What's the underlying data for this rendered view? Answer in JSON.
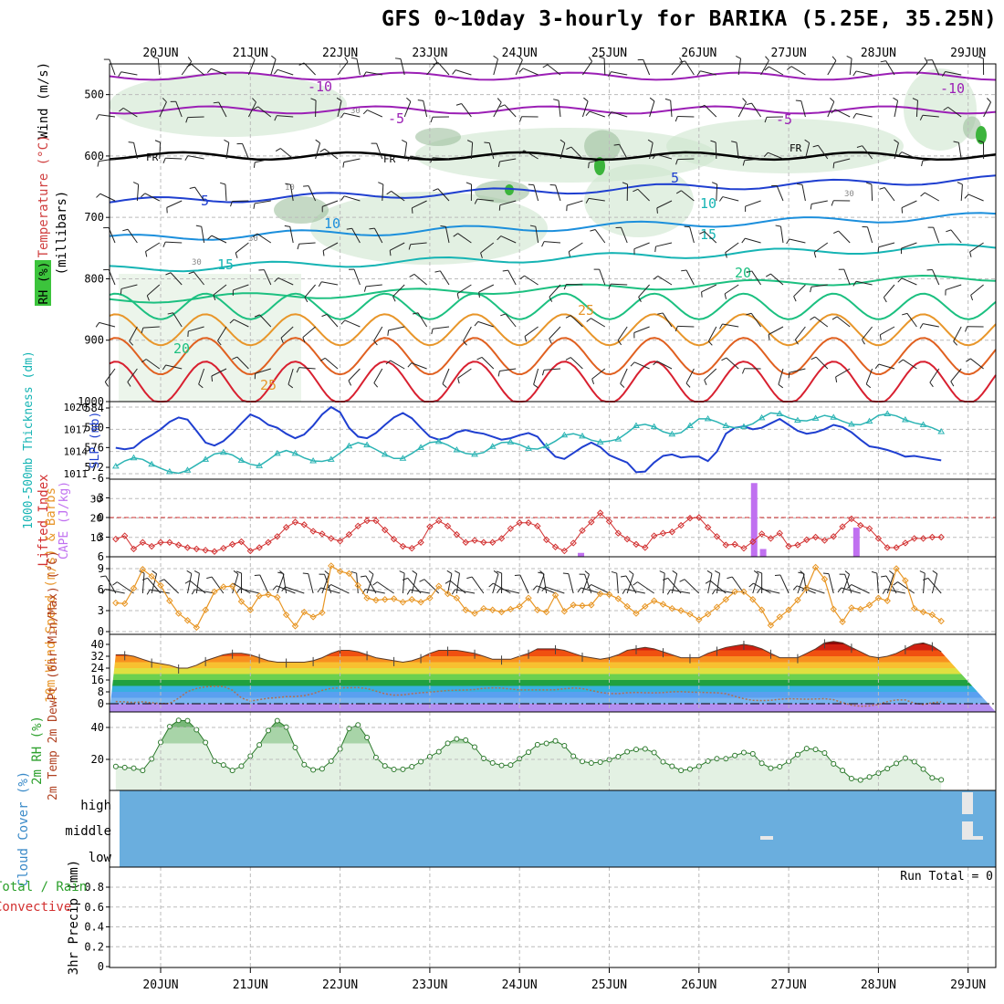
{
  "title": "GFS 0~10day 3-hourly for BARIKA (5.25E, 35.25N)",
  "dates": [
    "20JUN",
    "21JUN",
    "22JUN",
    "23JUN",
    "24JUN",
    "25JUN",
    "26JUN",
    "27JUN",
    "28JUN",
    "29JUN"
  ],
  "chart_data": [
    {
      "type": "area",
      "panel": "upper-air",
      "labels": {
        "wind": "Wind (m/s)",
        "temp": "Temperature (°C)",
        "rh": "RH (%)",
        "pressure": "(millibars)"
      },
      "y_ticks": [
        500,
        600,
        700,
        800,
        900,
        1000
      ],
      "ylim": [
        1000,
        450
      ],
      "isotherm_labels": [
        "-10",
        "-5",
        "FR",
        "5",
        "10",
        "15",
        "20",
        "25"
      ],
      "rh_labels": [
        "10",
        "30",
        "30",
        "30",
        "30"
      ],
      "isotherms": [
        {
          "name": "-10",
          "color": "#9b1fb5",
          "p": 470
        },
        {
          "name": "-5",
          "color": "#9b1fb5",
          "p": 525
        },
        {
          "name": "FR",
          "color": "#000000",
          "p": 600
        },
        {
          "name": "5",
          "color": "#1f3fd0",
          "p": 660
        },
        {
          "name": "10",
          "color": "#1c8fdc",
          "p": 720
        },
        {
          "name": "15",
          "color": "#16b4b4",
          "p": 770
        },
        {
          "name": "20",
          "color": "#1cc080",
          "p": 820
        }
      ]
    },
    {
      "type": "line",
      "panel": "thickness-slp",
      "ylabel_left": "1000-500mb Thickness (dm)",
      "ylabel_right": "SLP (mb)",
      "thickness_ticks": [
        572,
        576,
        580,
        584
      ],
      "slp_ticks": [
        1011,
        1014,
        1017,
        1020
      ],
      "series": [
        {
          "name": "SLP (mb)",
          "color": "#1f3fd0",
          "values": [
            1014.5,
            1014.3,
            1014.5,
            1015.5,
            1016.2,
            1017.0,
            1018.0,
            1018.6,
            1018.3,
            1016.8,
            1015.2,
            1014.8,
            1015.4,
            1016.5,
            1017.8,
            1019.0,
            1018.5,
            1017.6,
            1017.2,
            1016.4,
            1015.8,
            1016.3,
            1017.5,
            1019.0,
            1020.0,
            1019.3,
            1017.2,
            1016.0,
            1015.8,
            1016.5,
            1017.6,
            1018.6,
            1019.2,
            1018.5,
            1017.2,
            1016.0,
            1015.6,
            1015.9,
            1016.6,
            1016.9,
            1016.6,
            1016.4,
            1016.0,
            1015.6,
            1015.8,
            1016.2,
            1016.5,
            1016.0,
            1014.5,
            1013.3,
            1013.0,
            1013.8,
            1014.6,
            1015.2,
            1014.6,
            1013.5,
            1013.0,
            1012.5,
            1011.2,
            1011.3,
            1012.5,
            1013.4,
            1013.6,
            1013.2,
            1013.3,
            1013.3,
            1012.7,
            1014.0,
            1016.4,
            1017.2,
            1017.4,
            1017.0,
            1017.2,
            1017.8,
            1018.4,
            1017.6,
            1016.8,
            1016.4,
            1016.6,
            1017.0,
            1017.6,
            1017.3,
            1016.6,
            1015.6,
            1014.7,
            1014.5,
            1014.2,
            1013.8,
            1013.3,
            1013.4,
            1013.2,
            1013.0,
            1012.8
          ]
        },
        {
          "name": "1000-500mb Thickness (dm)",
          "color": "#2cb4b4",
          "values": [
            572.2,
            573.3,
            573.9,
            573.6,
            572.6,
            571.8,
            571.1,
            570.8,
            571.4,
            572.5,
            573.6,
            574.7,
            575.0,
            574.5,
            573.4,
            572.6,
            572.3,
            573.5,
            574.8,
            575.4,
            574.8,
            573.9,
            573.3,
            573.2,
            573.6,
            574.9,
            576.3,
            577.0,
            576.5,
            575.6,
            574.6,
            573.8,
            573.8,
            574.8,
            576.0,
            577.0,
            577.2,
            576.5,
            575.5,
            574.8,
            574.6,
            575.0,
            576.2,
            577.0,
            577.1,
            576.6,
            575.8,
            575.7,
            576.3,
            577.3,
            578.5,
            578.8,
            578.3,
            577.5,
            577.1,
            577.3,
            577.7,
            579.0,
            580.4,
            580.7,
            580.2,
            579.2,
            578.7,
            579.0,
            580.4,
            581.8,
            581.8,
            581.2,
            580.4,
            580.0,
            580.2,
            580.8,
            582.0,
            583.0,
            582.8,
            582.0,
            581.5,
            581.4,
            581.9,
            582.5,
            582.1,
            581.3,
            580.7,
            580.6,
            581.3,
            582.5,
            582.8,
            582.4,
            581.6,
            581.0,
            580.6,
            580.0,
            579.2
          ]
        }
      ]
    },
    {
      "type": "bar",
      "panel": "cape-lifted-index",
      "ylabel_left": "Lifted Index",
      "ylabel_right": "CAPE (J/kg)",
      "li_ticks": [
        "-6",
        "-3",
        "0",
        "3",
        "6"
      ],
      "cape_ticks": [
        "10",
        "20",
        "30"
      ],
      "series": [
        {
          "name": "Lifted Index",
          "color": "#d23030",
          "values": [
            3.3,
            2.8,
            4.8,
            3.8,
            4.4,
            3.8,
            3.8,
            4.2,
            4.6,
            4.8,
            5.0,
            5.2,
            4.7,
            4.1,
            3.7,
            5.1,
            4.6,
            3.8,
            2.9,
            1.5,
            0.7,
            1.1,
            2.1,
            2.5,
            3.2,
            3.6,
            2.6,
            1.3,
            0.5,
            0.5,
            1.9,
            3.3,
            4.4,
            4.7,
            3.8,
            1.4,
            0.5,
            1.3,
            2.6,
            3.8,
            3.5,
            3.8,
            3.8,
            3.2,
            1.7,
            0.8,
            0.8,
            1.3,
            3.4,
            4.5,
            5.1,
            3.9,
            2.0,
            0.7,
            -0.7,
            0.6,
            2.4,
            3.3,
            4.1,
            4.6,
            2.8,
            2.4,
            2.2,
            1.2,
            0.1,
            0.0,
            1.5,
            2.9,
            4.2,
            4.1,
            4.7,
            3.7,
            2.5,
            3.2,
            2.4,
            4.4,
            4.2,
            3.4,
            3.0,
            3.5,
            2.9,
            1.4,
            0.2,
            1.2,
            1.7,
            3.2,
            4.6,
            4.6,
            3.9,
            3.2,
            3.2,
            3.0,
            3.0
          ]
        },
        {
          "name": "CAPE (J/kg)",
          "color": "#c070f0",
          "points": [
            {
              "x": 4.68,
              "value": 2
            },
            {
              "x": 6.61,
              "value": 38
            },
            {
              "x": 6.71,
              "value": 4
            },
            {
              "x": 7.75,
              "value": 15
            }
          ]
        }
      ]
    },
    {
      "type": "line",
      "panel": "wind-10m",
      "ylabel": "10m Wind Speed (m/s) & Barbs",
      "y_ticks": [
        0,
        3,
        6,
        9
      ],
      "series": [
        {
          "name": "10m Wind Speed",
          "color": "#e89624",
          "values": [
            4.1,
            4.0,
            6.2,
            8.9,
            7.9,
            6.6,
            4.4,
            2.6,
            1.6,
            0.6,
            3.1,
            5.7,
            6.4,
            6.5,
            4.3,
            3.1,
            5.1,
            5.3,
            4.9,
            2.4,
            0.8,
            2.8,
            2.1,
            2.7,
            9.4,
            8.6,
            8.3,
            6.6,
            4.8,
            4.5,
            4.6,
            4.7,
            4.2,
            4.6,
            4.2,
            4.8,
            6.5,
            5.4,
            4.8,
            3.1,
            2.6,
            3.3,
            3.1,
            2.8,
            3.2,
            3.6,
            4.8,
            3.1,
            2.8,
            5.2,
            2.9,
            3.8,
            3.7,
            3.8,
            5.4,
            5.3,
            4.7,
            3.6,
            2.6,
            3.6,
            4.4,
            3.9,
            3.3,
            3.0,
            2.5,
            1.7,
            2.5,
            3.5,
            4.6,
            5.7,
            5.7,
            4.6,
            3.1,
            0.9,
            2.1,
            3.1,
            4.5,
            6.2,
            9.2,
            7.5,
            3.2,
            1.4,
            3.4,
            3.2,
            3.8,
            4.8,
            4.4,
            9.0,
            7.3,
            3.3,
            2.8,
            2.4,
            1.5
          ]
        }
      ]
    },
    {
      "type": "area",
      "panel": "temp-2m",
      "ylabel": "2m Temp 2m DewPt (6hr Min/Max) (°C)",
      "y_ticks": [
        0,
        8,
        16,
        24,
        32,
        40
      ],
      "series": [
        {
          "name": "2m Temp",
          "color": "#ff5a00",
          "values": [
            33,
            33,
            32,
            30,
            28,
            27,
            26,
            24,
            24,
            26,
            29,
            31,
            33,
            34,
            34,
            33,
            31,
            29,
            28,
            28,
            28,
            28,
            29,
            31,
            34,
            36,
            36,
            35,
            33,
            31,
            30,
            29,
            28,
            29,
            31,
            34,
            36,
            36,
            36,
            35,
            34,
            32,
            30,
            30,
            30,
            32,
            34,
            37,
            37,
            37,
            36,
            34,
            32,
            31,
            30,
            31,
            33,
            36,
            37,
            38,
            37,
            35,
            33,
            31,
            31,
            31,
            34,
            36,
            38,
            39,
            40,
            39,
            37,
            34,
            31,
            31,
            31,
            34,
            37,
            41,
            42,
            41,
            38,
            35,
            32,
            31,
            32,
            34,
            37,
            40,
            41,
            39,
            35,
            32,
            30,
            29,
            30
          ]
        },
        {
          "name": "2m DewPt",
          "color": "#7a5a3a",
          "values": [
            1.5,
            1.2,
            0.8,
            1.3,
            0.6,
            0.2,
            0.2,
            3.7,
            8.2,
            10.3,
            11.3,
            11.8,
            11.6,
            9.1,
            3.9,
            1.7,
            2.8,
            3.7,
            4.1,
            4.8,
            4.8,
            5.5,
            6.8,
            9.0,
            10.4,
            10.7,
            10.8,
            10.9,
            10.2,
            8.5,
            6.7,
            5.8,
            6.0,
            6.8,
            7.4,
            7.8,
            8.4,
            8.9,
            9.1,
            9.2,
            9.6,
            10.4,
            10.7,
            10.6,
            9.9,
            9.3,
            9.3,
            9.3,
            9.3,
            9.4,
            10.1,
            10.6,
            10.2,
            8.9,
            7.6,
            6.9,
            6.8,
            7.4,
            7.6,
            7.4,
            7.3,
            7.5,
            8.0,
            8.1,
            7.8,
            7.7,
            7.5,
            7.4,
            6.8,
            5.0,
            3.3,
            2.3,
            2.1,
            2.3,
            3.0,
            3.4,
            3.2,
            3.0,
            3.2,
            3.4,
            2.7,
            0.7,
            -0.9,
            -1.7,
            -1.5,
            -0.5,
            1.4,
            2.6,
            2.5,
            0.4,
            -0.5,
            0.6,
            1.3,
            2.9
          ]
        }
      ]
    },
    {
      "type": "area",
      "panel": "rh-2m",
      "ylabel": "2m RH (%)",
      "y_ticks": [
        20,
        40
      ],
      "series": [
        {
          "name": "2m RH",
          "color": "#2ca02c",
          "values": [
            15.6,
            14.9,
            14.5,
            13.1,
            20.3,
            30.7,
            40.5,
            44.4,
            44.2,
            38.6,
            30.6,
            18.9,
            16.5,
            13.1,
            15.8,
            22.1,
            29.1,
            38.1,
            44.2,
            40.2,
            27.4,
            16.7,
            13.4,
            14.1,
            18.9,
            26.5,
            39.3,
            41.6,
            33.7,
            21.2,
            15.9,
            13.7,
            13.8,
            15.4,
            18.6,
            21.7,
            24.8,
            30.1,
            32.8,
            32.1,
            27.7,
            20.6,
            17.8,
            16.2,
            16.5,
            20.4,
            24.5,
            29.2,
            30.0,
            31.6,
            28.6,
            22.0,
            18.7,
            17.7,
            18.3,
            19.8,
            21.7,
            24.8,
            26.2,
            26.6,
            24.3,
            18.5,
            15.7,
            13.1,
            13.9,
            15.7,
            18.9,
            20.4,
            20.4,
            22.4,
            24.3,
            23.5,
            17.6,
            14.5,
            15.4,
            18.8,
            23.0,
            26.8,
            26.2,
            24.0,
            17.2,
            13.1,
            8.0,
            7.1,
            9.0,
            11.4,
            14.2,
            17.5,
            20.8,
            18.6,
            13.9,
            8.4,
            7.2,
            8.0,
            9.1,
            13.6,
            15.8,
            14.0
          ]
        }
      ]
    },
    {
      "type": "heatmap",
      "panel": "cloud-cover",
      "ylabel": "Cloud Cover (%)",
      "levels": [
        "high",
        "middle",
        "low"
      ],
      "note": "mostly clear; small mid/high cloud near 26.7 and 29.0 days"
    },
    {
      "type": "line",
      "panel": "precip",
      "ylabel": "3hr Precip (mm)",
      "legend": "Total / Rain Convective",
      "y_ticks": [
        0,
        0.2,
        0.4,
        0.6,
        0.8
      ],
      "run_total": "Run Total = 0"
    }
  ]
}
